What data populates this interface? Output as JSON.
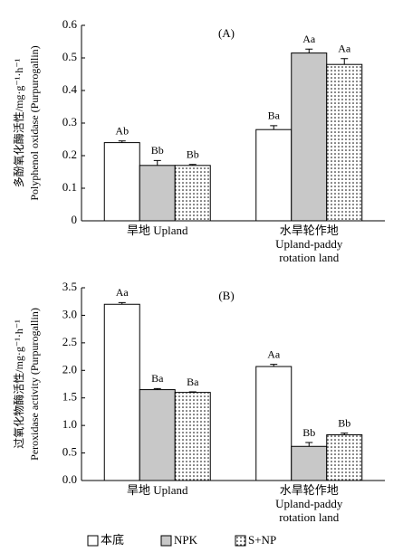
{
  "chart_data": [
    {
      "type": "bar",
      "title": "(A)",
      "ylabel": [
        "多酚氧化酶活性/mg·g⁻¹·h⁻¹",
        "Polyphenol oxidase (Purpurogallin)"
      ],
      "categories": [
        [
          "旱地 Upland"
        ],
        [
          "水旱轮作地",
          "Upland-paddy",
          "rotation land"
        ]
      ],
      "series": [
        {
          "color": "#ffffff",
          "values": [
            0.24,
            0.28
          ],
          "errors": [
            0.005,
            0.012
          ],
          "letters": [
            "Ab",
            "Ba"
          ]
        },
        {
          "color": "#c8c8c8",
          "values": [
            0.17,
            0.515
          ],
          "errors": [
            0.015,
            0.012
          ],
          "letters": [
            "Bb",
            "Aa"
          ]
        },
        {
          "color": "#ffffff",
          "pattern": "dots",
          "values": [
            0.17,
            0.48
          ],
          "errors": [
            0.003,
            0.018
          ],
          "letters": [
            "Bb",
            "Aa"
          ]
        }
      ],
      "ylim": [
        0,
        0.6
      ],
      "yticks": [
        0,
        0.1,
        0.2,
        0.3,
        0.4,
        0.5,
        0.6
      ]
    },
    {
      "type": "bar",
      "title": "(B)",
      "ylabel": [
        "过氧化物酶活性/mg·g⁻¹·h⁻¹",
        "Peroxidase activity (Purpurogallin)"
      ],
      "categories": [
        [
          "旱地 Upland"
        ],
        [
          "水旱轮作地",
          "Upland-paddy",
          "rotation land"
        ]
      ],
      "series": [
        {
          "name": "本底",
          "color": "#ffffff",
          "values": [
            3.2,
            2.07
          ],
          "errors": [
            0.03,
            0.04
          ],
          "letters": [
            "Aa",
            "Aa"
          ]
        },
        {
          "name": "NPK",
          "color": "#c8c8c8",
          "values": [
            1.65,
            0.62
          ],
          "errors": [
            0.02,
            0.07
          ],
          "letters": [
            "Ba",
            "Bb"
          ]
        },
        {
          "name": "S+NP",
          "color": "#ffffff",
          "pattern": "dots",
          "values": [
            1.6,
            0.83
          ],
          "errors": [
            0.01,
            0.03
          ],
          "letters": [
            "Ba",
            "Bb"
          ]
        }
      ],
      "ylim": [
        0,
        3.5
      ],
      "yticks": [
        {
          "value": 0,
          "label": "0.0"
        },
        0.5,
        {
          "value": 1,
          "label": "1.0"
        },
        1.5,
        {
          "value": 2,
          "label": "2.0"
        },
        2.5,
        {
          "value": 3,
          "label": "3.0"
        },
        3.5
      ]
    }
  ]
}
